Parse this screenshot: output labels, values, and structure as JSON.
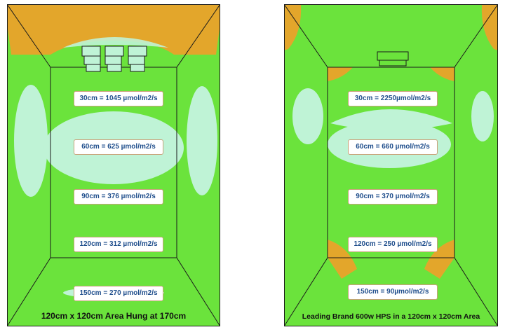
{
  "colors": {
    "green": "#6be33c",
    "orange": "#e3a62b",
    "cyan": "#bff3d6",
    "label_text": "#1f4e8c"
  },
  "left_panel": {
    "caption": "120cm x 120cm Area Hung at 170cm",
    "readings": [
      "30cm = 1045 µmol/m2/s",
      "60cm = 625 µmol/m2/s",
      "90cm = 376 µmol/m2/s",
      "120cm = 312 µmol/m2/s",
      "150cm = 270 µmol/m2/s"
    ]
  },
  "right_panel": {
    "caption": "Leading Brand 600w HPS in a 120cm x 120cm Area",
    "readings": [
      "30cm = 2250µmol/m2/s",
      "60cm = 660 µmol/m2/s",
      "90cm = 370 µmol/m2/s",
      "120cm = 250 µmol/m2/s",
      "150cm = 90µmol/m2/s"
    ]
  }
}
